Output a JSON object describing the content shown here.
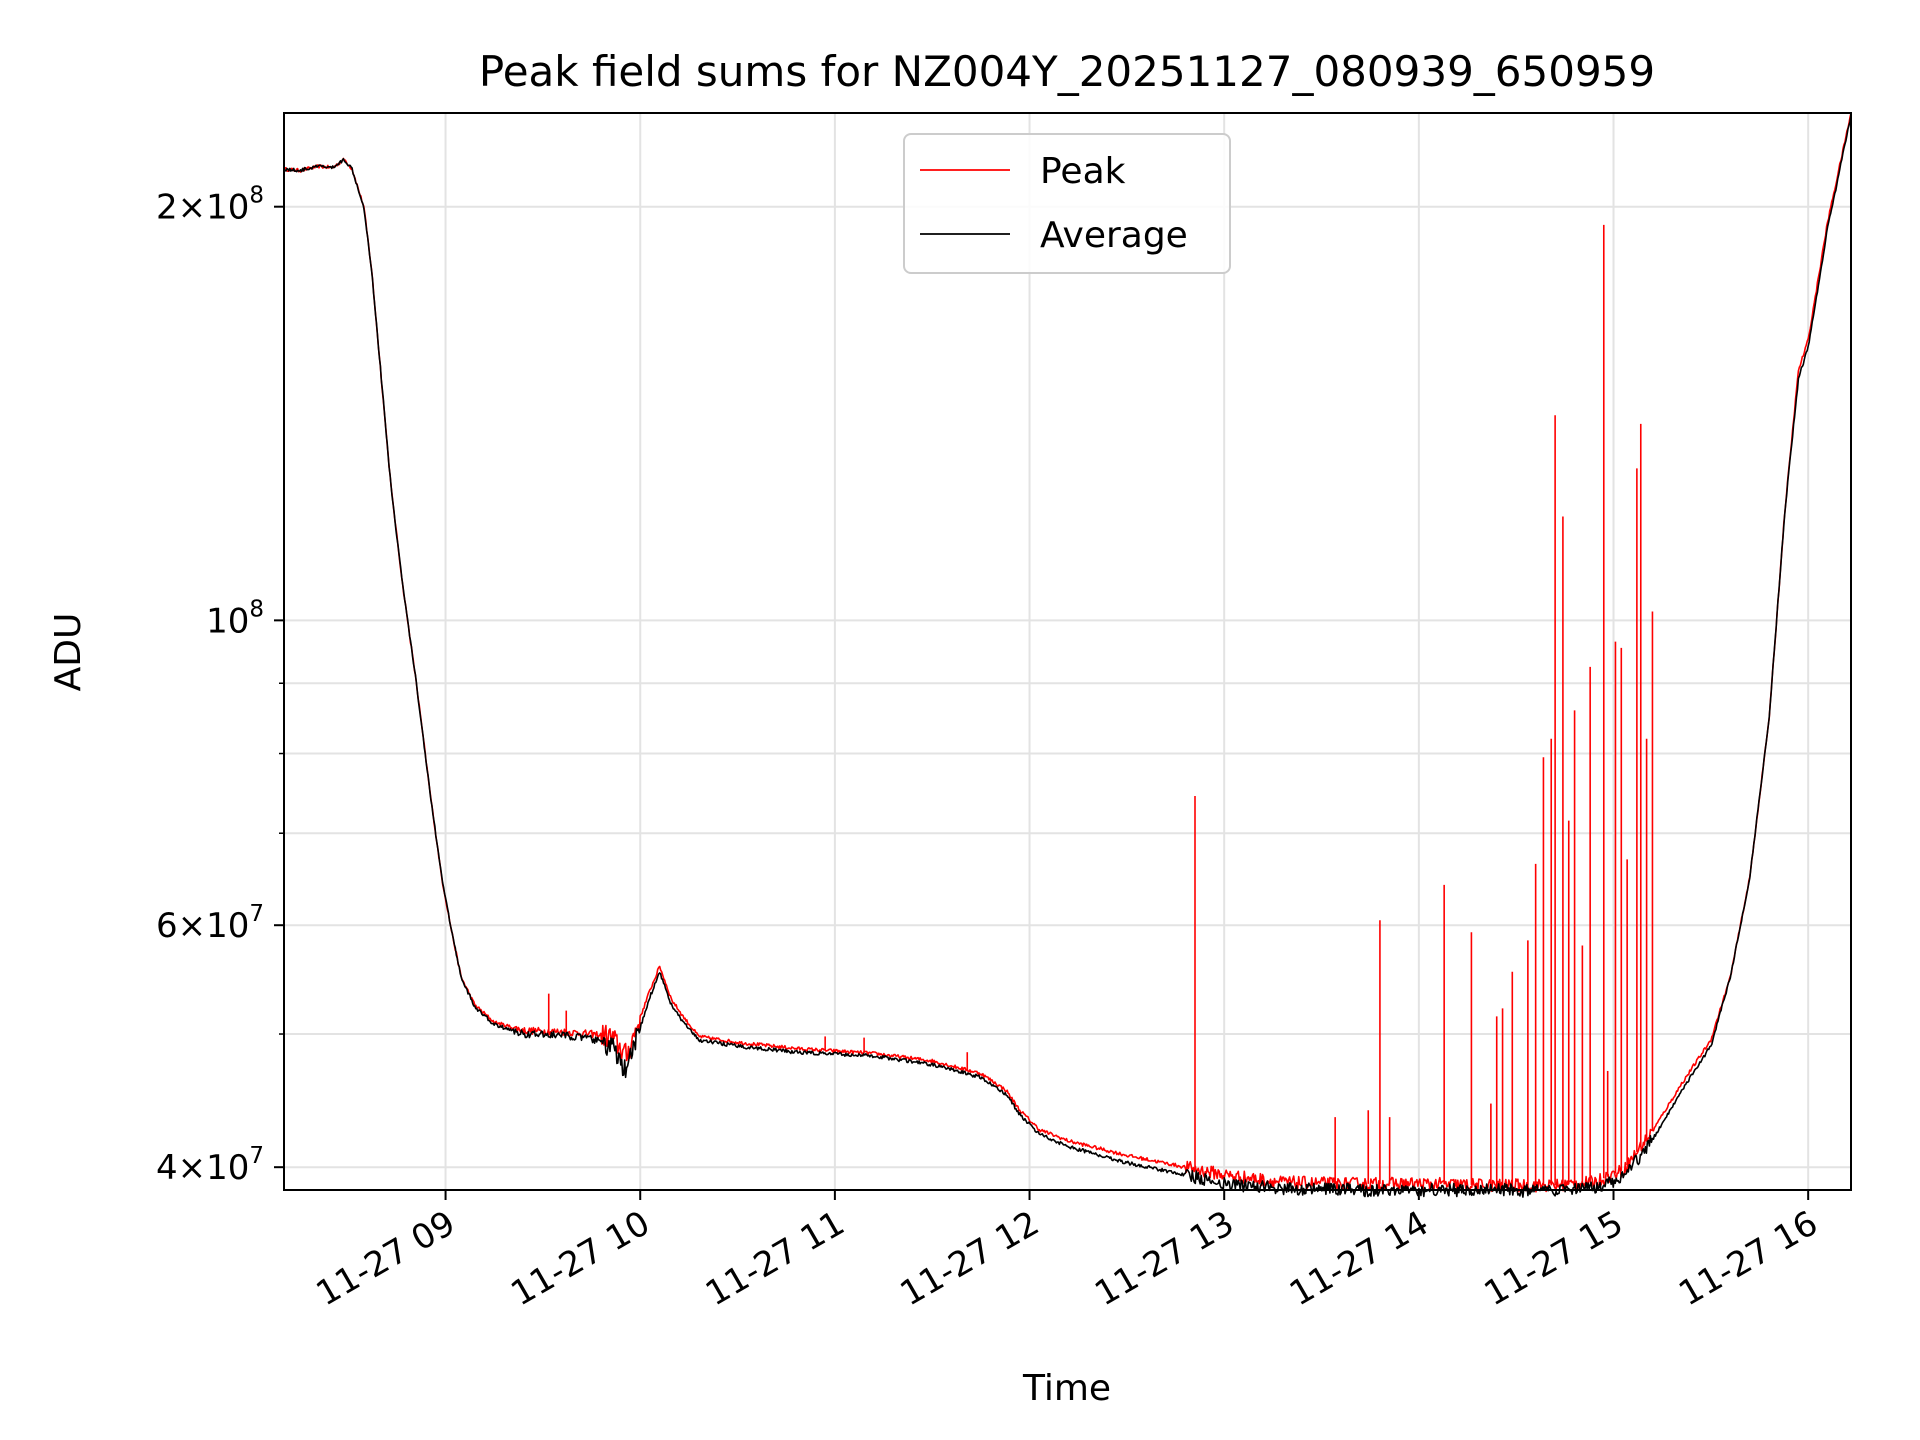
{
  "chart_data": {
    "type": "line",
    "title": "Peak field sums for NZ004Y_20251127_080939_650959",
    "xlabel": "Time",
    "ylabel": "ADU",
    "yscale": "log",
    "xlim": [
      8.17,
      16.22
    ],
    "ylim": [
      38500000,
      234000000
    ],
    "grid": true,
    "legend_position": "upper center",
    "x_tick_values": [
      9,
      10,
      11,
      12,
      13,
      14,
      15,
      16
    ],
    "x_tick_labels": [
      "11-27 09",
      "11-27 10",
      "11-27 11",
      "11-27 12",
      "11-27 13",
      "11-27 14",
      "11-27 15",
      "11-27 16"
    ],
    "y_major_ticks": [
      {
        "value": 40000000,
        "mantissa": "4",
        "exponent": "7"
      },
      {
        "value": 60000000,
        "mantissa": "6",
        "exponent": "7"
      },
      {
        "value": 100000000,
        "mantissa": "",
        "exponent": "8"
      },
      {
        "value": 200000000,
        "mantissa": "2",
        "exponent": "8"
      }
    ],
    "y_minor_ticks": [
      50000000,
      70000000,
      80000000,
      90000000
    ],
    "x_unit": "hour of 2025-11-27",
    "series": [
      {
        "name": "Peak",
        "color": "#ff0000",
        "base": [
          [
            8.17,
            213000000
          ],
          [
            8.25,
            212500000
          ],
          [
            8.35,
            214000000
          ],
          [
            8.42,
            213500000
          ],
          [
            8.48,
            216500000
          ],
          [
            8.52,
            213000000
          ],
          [
            8.58,
            200000000
          ],
          [
            8.62,
            180000000
          ],
          [
            8.67,
            150000000
          ],
          [
            8.72,
            125000000
          ],
          [
            8.78,
            106000000
          ],
          [
            8.85,
            90000000
          ],
          [
            8.92,
            75000000
          ],
          [
            8.98,
            65000000
          ],
          [
            9.03,
            59500000
          ],
          [
            9.08,
            55000000
          ],
          [
            9.15,
            52500000
          ],
          [
            9.25,
            51000000
          ],
          [
            9.4,
            50300000
          ],
          [
            9.6,
            50200000
          ],
          [
            9.75,
            50000000
          ],
          [
            9.85,
            49800000
          ],
          [
            9.93,
            48200000
          ],
          [
            9.98,
            50500000
          ],
          [
            10.05,
            53800000
          ],
          [
            10.1,
            56000000
          ],
          [
            10.16,
            53000000
          ],
          [
            10.22,
            51500000
          ],
          [
            10.3,
            49800000
          ],
          [
            10.5,
            49300000
          ],
          [
            10.8,
            48800000
          ],
          [
            11.2,
            48400000
          ],
          [
            11.5,
            47800000
          ],
          [
            11.75,
            46800000
          ],
          [
            11.88,
            45500000
          ],
          [
            11.95,
            44000000
          ],
          [
            12.05,
            42600000
          ],
          [
            12.2,
            41800000
          ],
          [
            12.5,
            40800000
          ],
          [
            12.8,
            40000000
          ],
          [
            13.0,
            39500000
          ],
          [
            13.3,
            39000000
          ],
          [
            13.6,
            38900000
          ],
          [
            14.0,
            38900000
          ],
          [
            14.4,
            38800000
          ],
          [
            14.7,
            38800000
          ],
          [
            14.9,
            39000000
          ],
          [
            15.05,
            39800000
          ],
          [
            15.2,
            42500000
          ],
          [
            15.35,
            46000000
          ],
          [
            15.5,
            49500000
          ],
          [
            15.6,
            55000000
          ],
          [
            15.7,
            65000000
          ],
          [
            15.8,
            85000000
          ],
          [
            15.88,
            120000000
          ],
          [
            15.95,
            152000000
          ],
          [
            16.0,
            160000000
          ],
          [
            16.1,
            195000000
          ],
          [
            16.22,
            234000000
          ]
        ],
        "spikes": [
          [
            9.53,
            53500000
          ],
          [
            9.62,
            52000000
          ],
          [
            10.95,
            49800000
          ],
          [
            11.15,
            49700000
          ],
          [
            11.68,
            48500000
          ],
          [
            12.85,
            74500000
          ],
          [
            13.57,
            43500000
          ],
          [
            13.74,
            44000000
          ],
          [
            13.8,
            60500000
          ],
          [
            13.85,
            43500000
          ],
          [
            14.13,
            64200000
          ],
          [
            14.27,
            59300000
          ],
          [
            14.37,
            44500000
          ],
          [
            14.4,
            51500000
          ],
          [
            14.43,
            52200000
          ],
          [
            14.48,
            55500000
          ],
          [
            14.56,
            58500000
          ],
          [
            14.6,
            66500000
          ],
          [
            14.64,
            79500000
          ],
          [
            14.68,
            82000000
          ],
          [
            14.7,
            141000000
          ],
          [
            14.74,
            119000000
          ],
          [
            14.77,
            71500000
          ],
          [
            14.8,
            86000000
          ],
          [
            14.84,
            58000000
          ],
          [
            14.88,
            92500000
          ],
          [
            14.95,
            194000000
          ],
          [
            14.97,
            47000000
          ],
          [
            15.01,
            96500000
          ],
          [
            15.04,
            95500000
          ],
          [
            15.07,
            67000000
          ],
          [
            15.12,
            129000000
          ],
          [
            15.14,
            139000000
          ],
          [
            15.17,
            82000000
          ],
          [
            15.2,
            101500000
          ]
        ]
      },
      {
        "name": "Average",
        "color": "#000000",
        "base": [
          [
            8.17,
            213000000
          ],
          [
            8.25,
            212500000
          ],
          [
            8.35,
            214000000
          ],
          [
            8.42,
            213500000
          ],
          [
            8.48,
            216500000
          ],
          [
            8.52,
            213000000
          ],
          [
            8.58,
            200000000
          ],
          [
            8.62,
            180000000
          ],
          [
            8.67,
            150000000
          ],
          [
            8.72,
            125000000
          ],
          [
            8.78,
            106000000
          ],
          [
            8.85,
            90000000
          ],
          [
            8.92,
            75000000
          ],
          [
            8.98,
            65000000
          ],
          [
            9.03,
            59500000
          ],
          [
            9.08,
            55000000
          ],
          [
            9.15,
            52300000
          ],
          [
            9.25,
            50800000
          ],
          [
            9.4,
            50000000
          ],
          [
            9.6,
            49900000
          ],
          [
            9.75,
            49600000
          ],
          [
            9.85,
            49000000
          ],
          [
            9.93,
            46800000
          ],
          [
            9.98,
            49500000
          ],
          [
            10.05,
            53200000
          ],
          [
            10.1,
            55500000
          ],
          [
            10.16,
            52500000
          ],
          [
            10.22,
            51000000
          ],
          [
            10.3,
            49500000
          ],
          [
            10.5,
            49000000
          ],
          [
            10.8,
            48500000
          ],
          [
            11.2,
            48200000
          ],
          [
            11.5,
            47500000
          ],
          [
            11.75,
            46500000
          ],
          [
            11.88,
            45200000
          ],
          [
            11.95,
            43700000
          ],
          [
            12.05,
            42300000
          ],
          [
            12.2,
            41400000
          ],
          [
            12.5,
            40300000
          ],
          [
            12.8,
            39500000
          ],
          [
            13.0,
            38900000
          ],
          [
            13.3,
            38600000
          ],
          [
            13.6,
            38500000
          ],
          [
            14.0,
            38500000
          ],
          [
            14.4,
            38500000
          ],
          [
            14.7,
            38400000
          ],
          [
            14.9,
            38600000
          ],
          [
            15.05,
            39300000
          ],
          [
            15.2,
            41900000
          ],
          [
            15.35,
            45500000
          ],
          [
            15.5,
            49000000
          ],
          [
            15.6,
            55000000
          ],
          [
            15.7,
            65000000
          ],
          [
            15.8,
            85000000
          ],
          [
            15.88,
            120000000
          ],
          [
            15.95,
            150000000
          ],
          [
            16.0,
            158000000
          ],
          [
            16.1,
            193000000
          ],
          [
            16.22,
            233000000
          ]
        ],
        "spikes": []
      }
    ]
  }
}
